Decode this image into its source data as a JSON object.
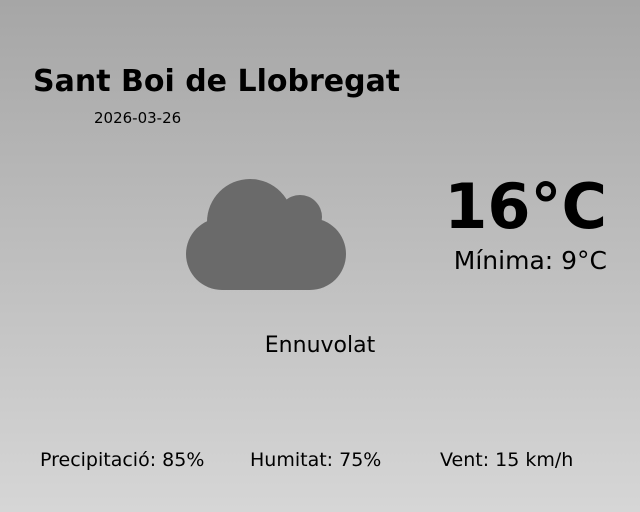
{
  "city": "Sant Boi de Llobregat",
  "date": "2026-03-26",
  "icon": "cloud-icon",
  "temperature": "16°C",
  "minimum": "Mínima: 9°C",
  "condition": "Ennuvolat",
  "stats": {
    "precipitation": "Precipitació: 85%",
    "humidity": "Humitat: 75%",
    "wind": "Vent: 15 km/h"
  },
  "colors": {
    "icon": "#6a6a6a"
  }
}
